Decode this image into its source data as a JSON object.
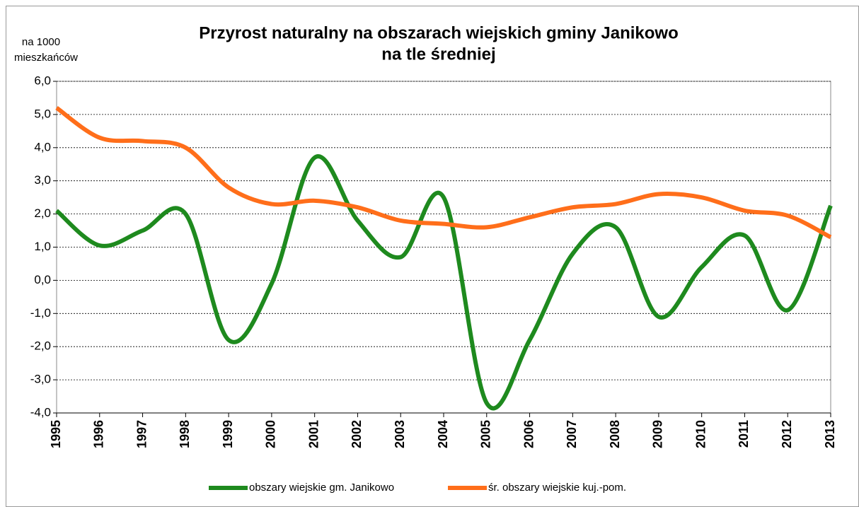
{
  "chart_data": {
    "type": "line",
    "title": [
      "Przyrost naturalny na obszarach wiejskich gminy Janikowo",
      "na tle średniej"
    ],
    "y_axis_label": [
      "na 1000",
      "mieszkańców"
    ],
    "categories": [
      "1995",
      "1996",
      "1997",
      "1998",
      "1999",
      "2000",
      "2001",
      "2002",
      "2003",
      "2004",
      "2005",
      "2006",
      "2007",
      "2008",
      "2009",
      "2010",
      "2011",
      "2012",
      "2013"
    ],
    "series": [
      {
        "name": "obszary wiejskie gm. Janikowo",
        "color": "#1e8a1e",
        "values": [
          2.1,
          1.05,
          1.5,
          2.0,
          -1.8,
          -0.1,
          3.7,
          1.8,
          0.7,
          2.5,
          -3.7,
          -1.8,
          0.8,
          1.6,
          -1.1,
          0.4,
          1.35,
          -0.9,
          2.25
        ]
      },
      {
        "name": "śr. obszary wiejskie kuj.-pom.",
        "color": "#ff6e1a",
        "values": [
          5.2,
          4.3,
          4.2,
          4.0,
          2.8,
          2.3,
          2.4,
          2.2,
          1.8,
          1.7,
          1.6,
          1.9,
          2.2,
          2.3,
          2.6,
          2.5,
          2.1,
          1.95,
          1.3
        ]
      }
    ],
    "ylim": [
      -4,
      6
    ],
    "yticks": [
      {
        "value": -4,
        "label": "-4,0"
      },
      {
        "value": -3,
        "label": "-3,0"
      },
      {
        "value": -2,
        "label": "-2,0"
      },
      {
        "value": -1,
        "label": "-1,0"
      },
      {
        "value": 0,
        "label": "0,0"
      },
      {
        "value": 1,
        "label": "1,0"
      },
      {
        "value": 2,
        "label": "2,0"
      },
      {
        "value": 3,
        "label": "3,0"
      },
      {
        "value": 4,
        "label": "4,0"
      },
      {
        "value": 5,
        "label": "5,0"
      },
      {
        "value": 6,
        "label": "6,0"
      }
    ],
    "grid": true,
    "smooth": true,
    "legend": "bottom"
  }
}
